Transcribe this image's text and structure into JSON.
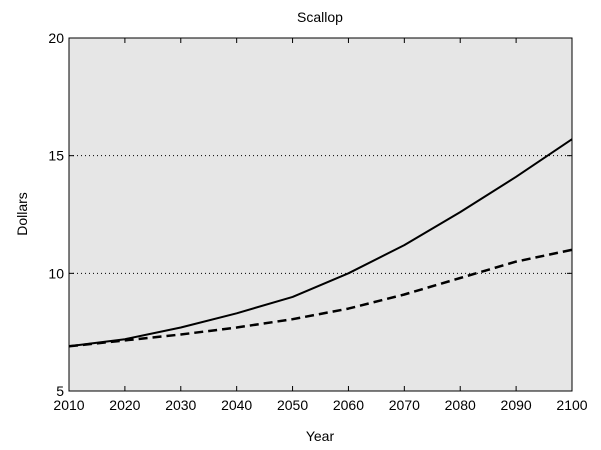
{
  "chart_data": {
    "type": "line",
    "title": "Scallop",
    "xlabel": "Year",
    "ylabel": "Dollars",
    "xlim": [
      2010,
      2100
    ],
    "ylim": [
      5,
      20
    ],
    "xticks": [
      2010,
      2020,
      2030,
      2040,
      2050,
      2060,
      2070,
      2080,
      2090,
      2100
    ],
    "yticks": [
      5,
      10,
      15,
      20
    ],
    "grid": "horizontal-dotted",
    "background": "#e6e6e6",
    "x": [
      2010,
      2020,
      2030,
      2040,
      2050,
      2060,
      2070,
      2080,
      2090,
      2100
    ],
    "series": [
      {
        "style": "solid",
        "color": "#000000",
        "values": [
          6.9,
          7.2,
          7.7,
          8.3,
          9.0,
          10.0,
          11.2,
          12.6,
          14.1,
          15.7
        ]
      },
      {
        "style": "dashed",
        "color": "#000000",
        "values": [
          6.9,
          7.15,
          7.4,
          7.7,
          8.05,
          8.5,
          9.1,
          9.8,
          10.5,
          11.0
        ]
      }
    ]
  }
}
